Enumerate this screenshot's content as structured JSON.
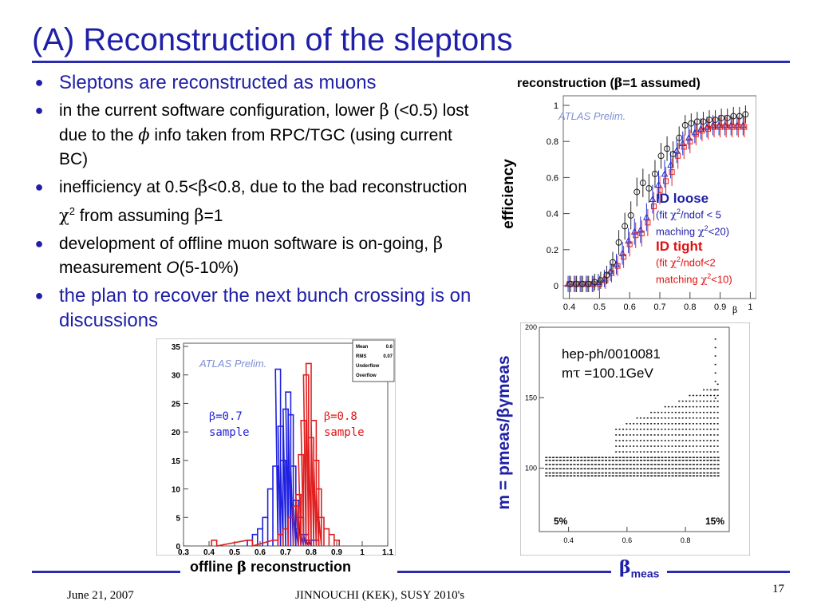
{
  "slide": {
    "title": "(A) Reconstruction of the sleptons",
    "bullets": [
      {
        "text": "Sleptons are reconstructed as muons"
      },
      {
        "parts": [
          "in the current software configuration, lower ",
          "β",
          " (<0.5) lost due to the ",
          "ϕ",
          " info taken from RPC/TGC (using current BC)"
        ]
      },
      {
        "parts": [
          "inefficiency at 0.5<",
          "β",
          "<0.8, due to the bad reconstruction ",
          "χ",
          "2",
          " from assuming ",
          "β",
          "=1"
        ]
      },
      {
        "parts": [
          "development of offline muon software is on-going, ",
          "β",
          " measurement ",
          "O",
          "(5-10%)"
        ]
      },
      {
        "text": "the plan to recover the next bunch crossing is on discussions"
      }
    ]
  },
  "efficiency_plot": {
    "title_pre": "reconstruction (",
    "title_beta": "β",
    "title_post": "=1 assumed)",
    "watermark": "ATLAS Prelim.",
    "ylabel": "efficiency",
    "xlabel": "β",
    "yticks": [
      "0",
      "0.2",
      "0.4",
      "0.6",
      "0.8",
      "1"
    ],
    "xticks": [
      "0.4",
      "0.5",
      "0.6",
      "0.7",
      "0.8",
      "0.9",
      "1"
    ],
    "legend": {
      "loose_title": "ID loose",
      "loose_l1_a": "(fit ",
      "loose_l1_chi": "χ",
      "loose_l1_sup": "2",
      "loose_l1_b": "/ndof < 5",
      "loose_l2_a": "maching ",
      "loose_l2_chi": "χ",
      "loose_l2_sup": "2",
      "loose_l2_b": "<20)",
      "tight_title": "ID tight",
      "tight_l1_a": "(fit ",
      "tight_l1_chi": "χ",
      "tight_l1_sup": "2",
      "tight_l1_b": "/ndof<2",
      "tight_l2_a": "matching ",
      "tight_l2_chi": "χ",
      "tight_l2_sup": "2",
      "tight_l2_b": "<10)"
    }
  },
  "histogram_plot": {
    "watermark": "ATLAS Prelim.",
    "yticks": [
      "0",
      "5",
      "10",
      "15",
      "20",
      "25",
      "30",
      "35"
    ],
    "xticks": [
      "0.3",
      "0.4",
      "0.5",
      "0.6",
      "0.7",
      "0.8",
      "0.9",
      "1",
      "1.1"
    ],
    "stats": [
      "Mean",
      "0.6",
      "RMS",
      "0.07",
      "Underflow",
      "",
      "Overflow",
      ""
    ],
    "sample1_beta": "β",
    "sample1_val": "=0.7",
    "sample1_word": "sample",
    "sample2_beta": "β",
    "sample2_val": "=0.8",
    "sample2_word": "sample",
    "caption_pre": "offline ",
    "caption_beta": "β",
    "caption_post": " reconstruction"
  },
  "mass_plot": {
    "ref_line1": "hep-ph/0010081",
    "ref_m": "m",
    "ref_tau": "τ",
    "ref_val": " =100.1GeV",
    "yticks": [
      "100",
      "150",
      "200"
    ],
    "xticks": [
      "0.4",
      "0.6",
      "0.8"
    ],
    "label_low": "5%",
    "label_high": "15%",
    "ylabel": "m = pmeas/βγmeas",
    "xlabel_beta": "β",
    "xlabel_sub": "meas"
  },
  "footer": {
    "date": "June 21,  2007",
    "center": "JINNOUCHI (KEK), SUSY 2010's",
    "page": "17"
  },
  "chart_data": [
    {
      "type": "scatter",
      "title": "reconstruction (β=1 assumed)",
      "xlabel": "β",
      "ylabel": "efficiency",
      "xlim": [
        0.38,
        1.02
      ],
      "ylim": [
        0,
        1
      ],
      "series": [
        {
          "name": "ID loose",
          "color": "#2030d0",
          "x": [
            0.4,
            0.42,
            0.44,
            0.46,
            0.48,
            0.5,
            0.52,
            0.54,
            0.56,
            0.58,
            0.6,
            0.62,
            0.64,
            0.66,
            0.68,
            0.7,
            0.72,
            0.74,
            0.76,
            0.78,
            0.8,
            0.82,
            0.84,
            0.86,
            0.88,
            0.9,
            0.92,
            0.94,
            0.96,
            0.98
          ],
          "y": [
            0.01,
            0.01,
            0.01,
            0.01,
            0.01,
            0.02,
            0.04,
            0.08,
            0.12,
            0.18,
            0.25,
            0.3,
            0.31,
            0.38,
            0.48,
            0.56,
            0.62,
            0.67,
            0.75,
            0.79,
            0.82,
            0.85,
            0.87,
            0.88,
            0.89,
            0.89,
            0.89,
            0.89,
            0.89,
            0.89
          ]
        },
        {
          "name": "ID tight",
          "color": "#e02020",
          "x": [
            0.4,
            0.42,
            0.44,
            0.46,
            0.48,
            0.5,
            0.52,
            0.54,
            0.56,
            0.58,
            0.6,
            0.62,
            0.64,
            0.66,
            0.68,
            0.7,
            0.72,
            0.74,
            0.76,
            0.78,
            0.8,
            0.82,
            0.84,
            0.86,
            0.88,
            0.9,
            0.92,
            0.94,
            0.96,
            0.98
          ],
          "y": [
            0.01,
            0.01,
            0.01,
            0.01,
            0.01,
            0.01,
            0.03,
            0.07,
            0.11,
            0.16,
            0.23,
            0.28,
            0.29,
            0.35,
            0.44,
            0.53,
            0.58,
            0.63,
            0.72,
            0.77,
            0.8,
            0.84,
            0.86,
            0.87,
            0.88,
            0.88,
            0.88,
            0.88,
            0.88,
            0.88
          ]
        },
        {
          "name": "",
          "color": "#222222",
          "x": [
            0.4,
            0.42,
            0.44,
            0.46,
            0.48,
            0.5,
            0.52,
            0.54,
            0.56,
            0.58,
            0.6,
            0.62,
            0.64,
            0.66,
            0.68,
            0.7,
            0.72,
            0.74,
            0.76,
            0.78,
            0.8,
            0.82,
            0.84,
            0.86,
            0.88,
            0.9,
            0.92,
            0.94,
            0.96,
            0.98
          ],
          "y": [
            0.01,
            0.01,
            0.01,
            0.01,
            0.02,
            0.03,
            0.06,
            0.13,
            0.24,
            0.33,
            0.39,
            0.52,
            0.57,
            0.54,
            0.62,
            0.72,
            0.76,
            0.73,
            0.82,
            0.89,
            0.9,
            0.91,
            0.91,
            0.92,
            0.92,
            0.93,
            0.93,
            0.94,
            0.94,
            0.95
          ]
        }
      ]
    },
    {
      "type": "bar",
      "xlim": [
        0.3,
        1.1
      ],
      "ylim": [
        0,
        35
      ],
      "series": [
        {
          "name": "β=0.7 sample",
          "color": "#2020e0",
          "x": [
            0.56,
            0.58,
            0.6,
            0.62,
            0.64,
            0.66,
            0.67,
            0.68,
            0.69,
            0.7,
            0.71,
            0.72,
            0.73,
            0.74,
            0.75,
            0.76,
            0.77,
            0.78,
            0.79,
            0.8,
            0.82
          ],
          "y": [
            1,
            2,
            3,
            5,
            10,
            14,
            31,
            21,
            15,
            24,
            27,
            23,
            14,
            8,
            3,
            5,
            2,
            2,
            1,
            1,
            1
          ]
        },
        {
          "name": "β=0.8 sample",
          "color": "#e02020",
          "x": [
            0.42,
            0.56,
            0.66,
            0.68,
            0.7,
            0.72,
            0.74,
            0.75,
            0.76,
            0.77,
            0.78,
            0.79,
            0.8,
            0.81,
            0.82,
            0.83,
            0.84,
            0.86,
            0.88,
            0.9
          ],
          "y": [
            1,
            1,
            1,
            2,
            3,
            5,
            7,
            9,
            16,
            22,
            30,
            32,
            19,
            22,
            15,
            10,
            5,
            3,
            2,
            1
          ]
        }
      ]
    }
  ]
}
